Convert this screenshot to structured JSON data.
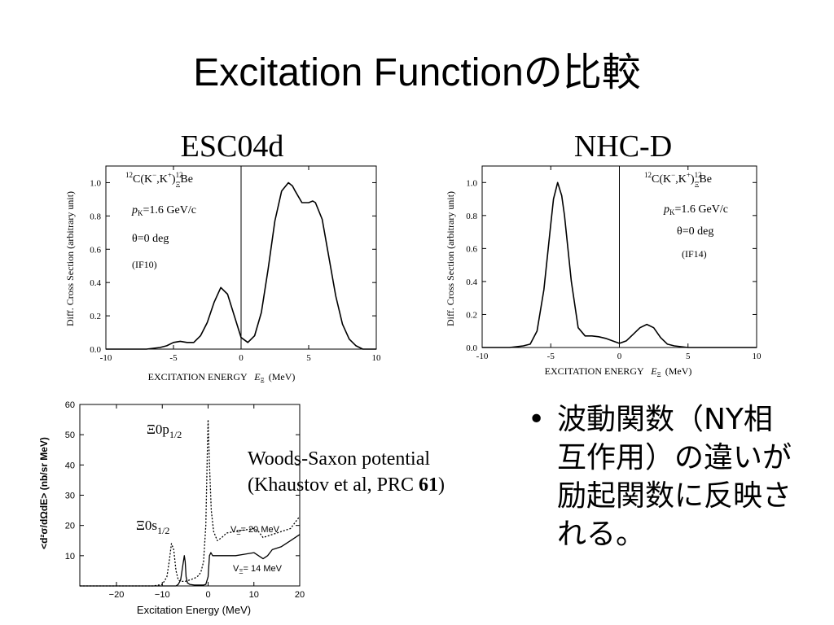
{
  "slide": {
    "title": "Excitation Functionの比較",
    "bullet_mark": "•",
    "bullet_text": "波動関数（NY相互作用）の違いが励起関数に反映される。",
    "caption_line1": "Woods-Saxon potential",
    "caption_line2_prefix": "(Khaustov et al, PRC ",
    "caption_line2_bold": "61",
    "caption_line2_suffix": ")"
  },
  "chart_data": [
    {
      "type": "line",
      "heading": "ESC04d",
      "title": "",
      "xlabel": "EXCITATION ENERGY",
      "xlabel_var": "E",
      "xlabel_sub": "Ξ",
      "xlabel_unit": "(MeV)",
      "ylabel": "Diff. Cross Section (arbitrary unit)",
      "xlim": [
        -10,
        10
      ],
      "ylim": [
        0,
        1.1
      ],
      "xticks": [
        -10,
        -5,
        0,
        5,
        10
      ],
      "yticks": [
        0.0,
        0.2,
        0.4,
        0.6,
        0.8,
        1.0
      ],
      "xtick_labels": [
        "-10",
        "-5",
        "0",
        "5",
        "10"
      ],
      "ytick_labels": [
        "0.0",
        "0.2",
        "0.4",
        "0.6",
        "0.8",
        "1.0"
      ],
      "vertical_line_x": 0,
      "annotations": {
        "reaction": {
          "pre_sup": "12",
          "text": "C(K",
          "minus": "−",
          "mid": ",K",
          "plus": "+",
          "close": ")",
          "ysup": "12",
          "ysub": "Ξ",
          "nucleus": "Be"
        },
        "momentum": {
          "var": "p",
          "sub": "K",
          "text": "=1.6 GeV/c"
        },
        "angle": "θ=0 deg",
        "tag": "(IF10)"
      },
      "series": [
        {
          "x": [
            -10,
            -9,
            -8,
            -7,
            -6,
            -5.5,
            -5,
            -4.5,
            -4,
            -3.5,
            -3,
            -2.5,
            -2,
            -1.5,
            -1,
            -0.5,
            0,
            0.5,
            1,
            1.5,
            2,
            2.5,
            3,
            3.5,
            3.8,
            4,
            4.5,
            5,
            5.3,
            5.5,
            6,
            6.5,
            7,
            7.5,
            8,
            8.5,
            9,
            9.5,
            10
          ],
          "y": [
            0.0,
            0.0,
            0.0,
            0.0,
            0.01,
            0.02,
            0.04,
            0.047,
            0.04,
            0.04,
            0.08,
            0.16,
            0.28,
            0.37,
            0.33,
            0.2,
            0.07,
            0.04,
            0.08,
            0.22,
            0.48,
            0.77,
            0.95,
            1.0,
            0.98,
            0.95,
            0.88,
            0.88,
            0.89,
            0.88,
            0.78,
            0.55,
            0.32,
            0.15,
            0.06,
            0.02,
            0.0,
            0.0,
            0.0
          ]
        }
      ]
    },
    {
      "type": "line",
      "heading": "NHC-D",
      "title": "",
      "xlabel": "EXCITATION ENERGY",
      "xlabel_var": "E",
      "xlabel_sub": "Ξ",
      "xlabel_unit": "(MeV)",
      "ylabel": "Diff. Cross Section (arbitrary unit)",
      "xlim": [
        -10,
        10
      ],
      "ylim": [
        0,
        1.1
      ],
      "xticks": [
        -10,
        -5,
        0,
        5,
        10
      ],
      "yticks": [
        0.0,
        0.2,
        0.4,
        0.6,
        0.8,
        1.0
      ],
      "xtick_labels": [
        "-10",
        "-5",
        "0",
        "5",
        "10"
      ],
      "ytick_labels": [
        "0.0",
        "0.2",
        "0.4",
        "0.6",
        "0.8",
        "1.0"
      ],
      "vertical_line_x": 0,
      "annotations": {
        "reaction": {
          "pre_sup": "12",
          "text": "C(K",
          "minus": "−",
          "mid": ",K",
          "plus": "+",
          "close": ")",
          "ysup": "12",
          "ysub": "Ξ",
          "nucleus": "Be"
        },
        "momentum": {
          "var": "p",
          "sub": "K",
          "text": "=1.6  GeV/c"
        },
        "angle": "θ=0 deg",
        "tag": "(IF14)"
      },
      "series": [
        {
          "x": [
            -10,
            -8,
            -7,
            -6.5,
            -6,
            -5.5,
            -5,
            -4.8,
            -4.5,
            -4.2,
            -4,
            -3.5,
            -3,
            -2.5,
            -2,
            -1.5,
            -1,
            -0.5,
            0,
            0.5,
            1,
            1.5,
            2,
            2.5,
            3,
            3.5,
            4,
            5,
            6,
            8,
            10
          ],
          "y": [
            0.0,
            0.0,
            0.01,
            0.02,
            0.1,
            0.35,
            0.75,
            0.9,
            1.0,
            0.92,
            0.8,
            0.4,
            0.12,
            0.07,
            0.07,
            0.065,
            0.055,
            0.04,
            0.025,
            0.04,
            0.08,
            0.12,
            0.14,
            0.12,
            0.06,
            0.02,
            0.01,
            0.0,
            0.0,
            0.0,
            0.0
          ]
        }
      ]
    },
    {
      "type": "line",
      "heading": "",
      "title": "",
      "xlabel": "Excitation Energy  (MeV)",
      "ylabel": "<d²σ/dΩdE> (nb/sr MeV)",
      "xlim": [
        -28,
        20
      ],
      "ylim": [
        0,
        60
      ],
      "xticks": [
        -20,
        -10,
        0,
        10,
        20
      ],
      "yticks": [
        10,
        20,
        30,
        40,
        50,
        60
      ],
      "xtick_labels": [
        "−20",
        "−10",
        "0",
        "10",
        "20"
      ],
      "ytick_labels": [
        "10",
        "20",
        "30",
        "40",
        "50",
        "60"
      ],
      "annotations": {
        "upper_state": {
          "text": "Ξ0p",
          "sub": "1/2"
        },
        "lower_state": {
          "text": "Ξ0s",
          "sub": "1/2"
        }
      },
      "series": [
        {
          "name": "VΞ= 20 MeV",
          "name_main": "V",
          "name_sub": "Ξ",
          "name_rest": "= 20 MeV",
          "style": "dotted",
          "x": [
            -28,
            -12,
            -10,
            -9,
            -8.5,
            -8,
            -7.5,
            -7,
            -6.5,
            -6,
            -5,
            -4,
            -3,
            -2,
            -1.5,
            -1,
            -0.5,
            -0.2,
            0,
            0.3,
            0.7,
            1.2,
            2,
            3,
            4,
            6,
            8,
            10,
            11,
            12,
            13,
            14,
            16,
            18,
            19,
            20
          ],
          "y": [
            0,
            0,
            0.5,
            3,
            8,
            14,
            12,
            5,
            2,
            1.5,
            1.5,
            2,
            2.5,
            3.5,
            5,
            8,
            20,
            42,
            55,
            40,
            25,
            18,
            15,
            16,
            17.5,
            18,
            18.5,
            19,
            18,
            16,
            16.5,
            17,
            18,
            19,
            21,
            23
          ]
        },
        {
          "name": "VΞ= 14 MeV",
          "name_main": "V",
          "name_sub": "Ξ",
          "name_rest": "= 14 MeV",
          "style": "solid",
          "x": [
            -28,
            -7,
            -6.5,
            -6,
            -5.5,
            -5.2,
            -5,
            -4.8,
            -4.5,
            -4,
            -3,
            -2,
            -1,
            -0.5,
            0,
            0.3,
            0.6,
            1,
            2,
            4,
            6,
            8,
            10,
            11,
            12,
            13,
            14,
            16,
            18,
            20
          ],
          "y": [
            0,
            0,
            0.5,
            2,
            7,
            10,
            8,
            3,
            1,
            0.5,
            0.3,
            0.3,
            0.3,
            0.5,
            3,
            10,
            11,
            10,
            10,
            10,
            10,
            10.5,
            11,
            10,
            9,
            10,
            12,
            13,
            15,
            17
          ]
        }
      ]
    }
  ]
}
